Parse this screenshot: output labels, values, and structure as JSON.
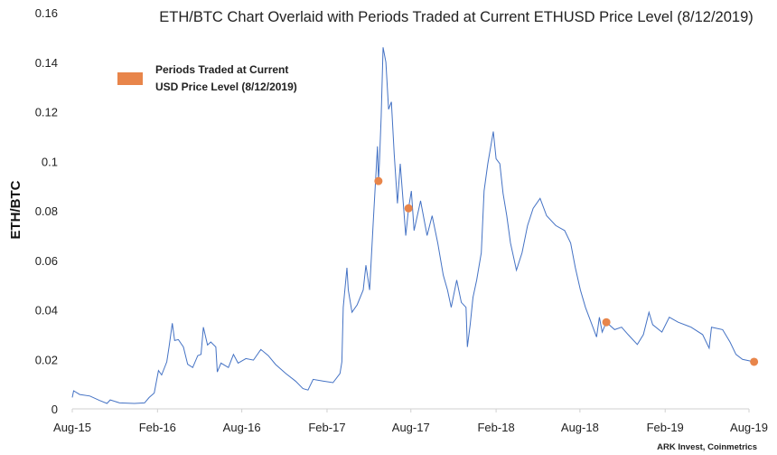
{
  "chart_data": {
    "type": "line",
    "title": "ETH/BTC Chart Overlaid with Periods Traded at Current ETHUSD Price Level (8/12/2019)",
    "xlabel": "",
    "ylabel": "ETH/BTC",
    "ylim": [
      0,
      0.16
    ],
    "yticks": [
      "0",
      "0.02",
      "0.04",
      "0.06",
      "0.08",
      "0.1",
      "0.12",
      "0.14",
      "0.16"
    ],
    "xlim": [
      "2015-08-01",
      "2019-08-01"
    ],
    "xticks": [
      {
        "date": "2015-08-01",
        "label": "Aug-15"
      },
      {
        "date": "2016-02-01",
        "label": "Feb-16"
      },
      {
        "date": "2016-08-01",
        "label": "Aug-16"
      },
      {
        "date": "2017-02-01",
        "label": "Feb-17"
      },
      {
        "date": "2017-08-01",
        "label": "Aug-17"
      },
      {
        "date": "2018-02-01",
        "label": "Feb-18"
      },
      {
        "date": "2018-08-01",
        "label": "Aug-18"
      },
      {
        "date": "2019-02-01",
        "label": "Feb-19"
      },
      {
        "date": "2019-08-01",
        "label": "Aug-19"
      }
    ],
    "grid": false,
    "legend_position": "top-left",
    "source": "ARK Invest, Coinmetrics",
    "series": [
      {
        "color": "#4472C4",
        "points": [
          [
            "2015-08-01",
            0.0046
          ],
          [
            "2015-08-04",
            0.0073
          ],
          [
            "2015-08-17",
            0.0058
          ],
          [
            "2015-09-08",
            0.0052
          ],
          [
            "2015-09-29",
            0.0034
          ],
          [
            "2015-10-15",
            0.0022
          ],
          [
            "2015-10-22",
            0.0036
          ],
          [
            "2015-11-11",
            0.0024
          ],
          [
            "2015-12-13",
            0.0022
          ],
          [
            "2016-01-04",
            0.0024
          ],
          [
            "2016-01-14",
            0.0046
          ],
          [
            "2016-01-25",
            0.0064
          ],
          [
            "2016-02-03",
            0.0155
          ],
          [
            "2016-02-10",
            0.0137
          ],
          [
            "2016-02-21",
            0.019
          ],
          [
            "2016-02-26",
            0.025
          ],
          [
            "2016-03-04",
            0.0346
          ],
          [
            "2016-03-09",
            0.0276
          ],
          [
            "2016-03-17",
            0.028
          ],
          [
            "2016-03-28",
            0.025
          ],
          [
            "2016-04-06",
            0.018
          ],
          [
            "2016-04-17",
            0.0167
          ],
          [
            "2016-04-28",
            0.0215
          ],
          [
            "2016-05-05",
            0.022
          ],
          [
            "2016-05-10",
            0.033
          ],
          [
            "2016-05-19",
            0.0258
          ],
          [
            "2016-05-26",
            0.027
          ],
          [
            "2016-06-06",
            0.025
          ],
          [
            "2016-06-09",
            0.0149
          ],
          [
            "2016-06-17",
            0.0185
          ],
          [
            "2016-07-03",
            0.0167
          ],
          [
            "2016-07-14",
            0.022
          ],
          [
            "2016-07-24",
            0.0185
          ],
          [
            "2016-08-10",
            0.0203
          ],
          [
            "2016-08-26",
            0.0197
          ],
          [
            "2016-09-11",
            0.024
          ],
          [
            "2016-09-27",
            0.0215
          ],
          [
            "2016-10-13",
            0.0179
          ],
          [
            "2016-11-04",
            0.0143
          ],
          [
            "2016-11-25",
            0.0112
          ],
          [
            "2016-12-11",
            0.0082
          ],
          [
            "2016-12-22",
            0.0076
          ],
          [
            "2017-01-02",
            0.0119
          ],
          [
            "2017-01-23",
            0.0112
          ],
          [
            "2017-02-14",
            0.0106
          ],
          [
            "2017-03-01",
            0.0143
          ],
          [
            "2017-03-05",
            0.019
          ],
          [
            "2017-03-08",
            0.041
          ],
          [
            "2017-03-16",
            0.057
          ],
          [
            "2017-03-19",
            0.048
          ],
          [
            "2017-03-27",
            0.039
          ],
          [
            "2017-04-07",
            0.042
          ],
          [
            "2017-04-20",
            0.048
          ],
          [
            "2017-04-26",
            0.058
          ],
          [
            "2017-05-04",
            0.048
          ],
          [
            "2017-05-12",
            0.076
          ],
          [
            "2017-05-21",
            0.106
          ],
          [
            "2017-05-23",
            0.092
          ],
          [
            "2017-05-25",
            0.099
          ],
          [
            "2017-05-29",
            0.118
          ],
          [
            "2017-06-02",
            0.146
          ],
          [
            "2017-06-08",
            0.14
          ],
          [
            "2017-06-14",
            0.121
          ],
          [
            "2017-06-20",
            0.124
          ],
          [
            "2017-06-26",
            0.103
          ],
          [
            "2017-07-03",
            0.083
          ],
          [
            "2017-07-09",
            0.099
          ],
          [
            "2017-07-21",
            0.07
          ],
          [
            "2017-07-27",
            0.081
          ],
          [
            "2017-08-02",
            0.088
          ],
          [
            "2017-08-08",
            0.072
          ],
          [
            "2017-08-22",
            0.084
          ],
          [
            "2017-09-05",
            0.07
          ],
          [
            "2017-09-16",
            0.078
          ],
          [
            "2017-09-28",
            0.067
          ],
          [
            "2017-10-10",
            0.054
          ],
          [
            "2017-10-19",
            0.048
          ],
          [
            "2017-10-27",
            0.041
          ],
          [
            "2017-11-08",
            0.052
          ],
          [
            "2017-11-18",
            0.043
          ],
          [
            "2017-11-28",
            0.041
          ],
          [
            "2017-12-01",
            0.025
          ],
          [
            "2017-12-07",
            0.034
          ],
          [
            "2017-12-13",
            0.045
          ],
          [
            "2017-12-21",
            0.052
          ],
          [
            "2017-12-31",
            0.063
          ],
          [
            "2018-01-06",
            0.088
          ],
          [
            "2018-01-14",
            0.099
          ],
          [
            "2018-01-26",
            0.112
          ],
          [
            "2018-02-01",
            0.101
          ],
          [
            "2018-02-09",
            0.099
          ],
          [
            "2018-02-16",
            0.087
          ],
          [
            "2018-02-24",
            0.078
          ],
          [
            "2018-03-04",
            0.067
          ],
          [
            "2018-03-17",
            0.056
          ],
          [
            "2018-03-29",
            0.063
          ],
          [
            "2018-04-10",
            0.074
          ],
          [
            "2018-04-22",
            0.081
          ],
          [
            "2018-05-07",
            0.085
          ],
          [
            "2018-05-21",
            0.078
          ],
          [
            "2018-06-10",
            0.074
          ],
          [
            "2018-06-29",
            0.072
          ],
          [
            "2018-07-12",
            0.067
          ],
          [
            "2018-07-22",
            0.057
          ],
          [
            "2018-08-02",
            0.048
          ],
          [
            "2018-08-13",
            0.041
          ],
          [
            "2018-08-27",
            0.034
          ],
          [
            "2018-09-06",
            0.029
          ],
          [
            "2018-09-12",
            0.037
          ],
          [
            "2018-09-18",
            0.031
          ],
          [
            "2018-09-27",
            0.035
          ],
          [
            "2018-10-15",
            0.032
          ],
          [
            "2018-10-30",
            0.033
          ],
          [
            "2018-11-13",
            0.03
          ],
          [
            "2018-12-03",
            0.026
          ],
          [
            "2018-12-16",
            0.03
          ],
          [
            "2018-12-28",
            0.039
          ],
          [
            "2019-01-05",
            0.034
          ],
          [
            "2019-01-25",
            0.031
          ],
          [
            "2019-02-10",
            0.037
          ],
          [
            "2019-03-01",
            0.035
          ],
          [
            "2019-03-29",
            0.033
          ],
          [
            "2019-04-23",
            0.03
          ],
          [
            "2019-05-07",
            0.0245
          ],
          [
            "2019-05-12",
            0.033
          ],
          [
            "2019-06-05",
            0.032
          ],
          [
            "2019-06-21",
            0.027
          ],
          [
            "2019-07-04",
            0.022
          ],
          [
            "2019-07-18",
            0.02
          ],
          [
            "2019-08-12",
            0.019
          ]
        ]
      },
      {
        "name": "Periods Traded at Current USD Price Level (8/12/2019)",
        "type": "scatter",
        "color": "#E8854A",
        "points": [
          [
            "2017-05-23",
            0.092
          ],
          [
            "2017-07-27",
            0.081
          ],
          [
            "2018-09-27",
            0.035
          ],
          [
            "2019-08-12",
            0.019
          ]
        ]
      }
    ]
  }
}
